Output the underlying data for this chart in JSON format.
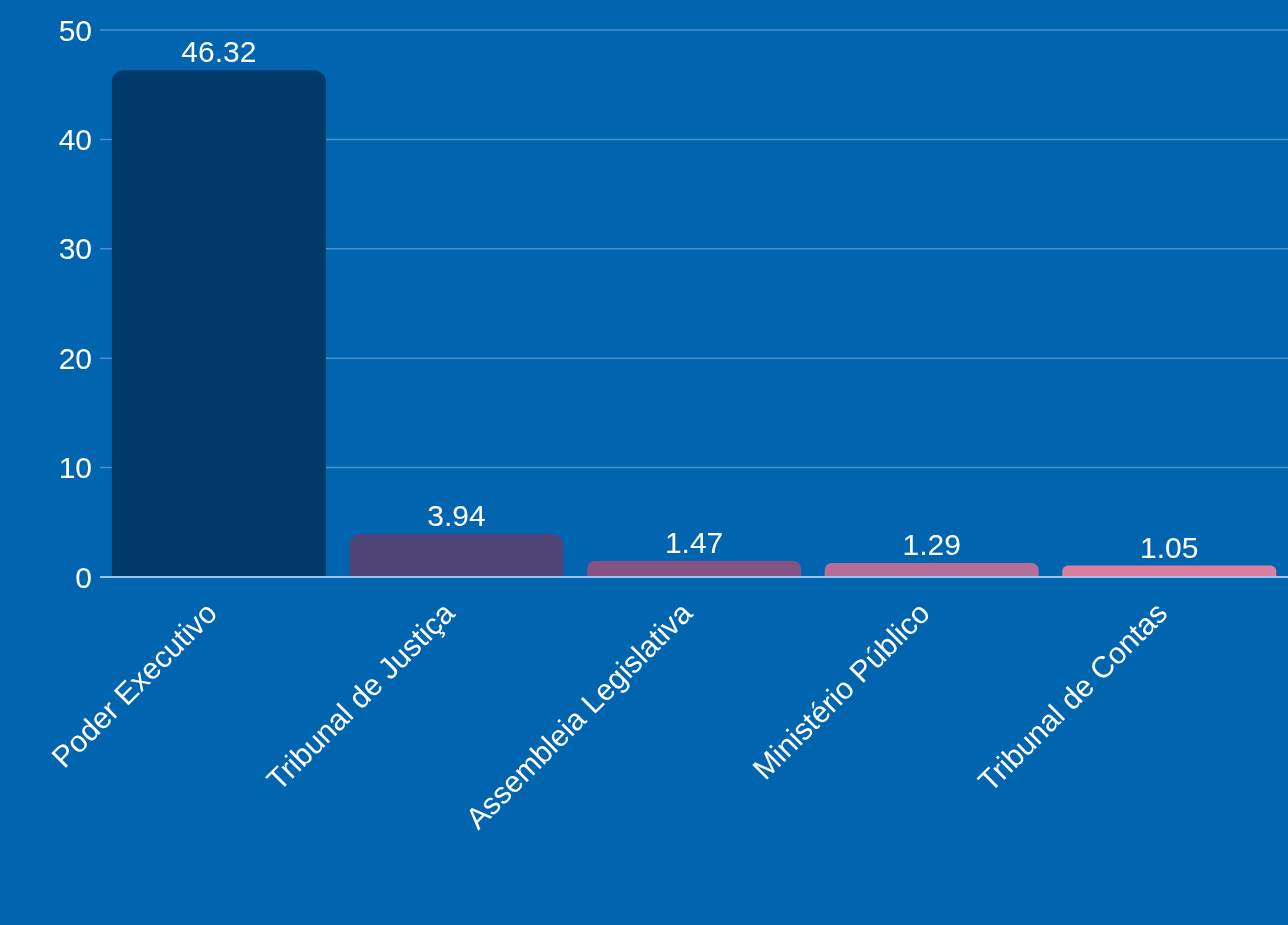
{
  "chart_data": {
    "type": "bar",
    "categories": [
      "Poder Executivo",
      "Tribunal de Justiça",
      "Assembleia Legislativa",
      "Ministério Público",
      "Tribunal de Contas"
    ],
    "values": [
      46.32,
      3.94,
      1.47,
      1.29,
      1.05
    ],
    "colors": [
      "#003a6b",
      "#4f4478",
      "#845384",
      "#b56e97",
      "#d97ea0"
    ],
    "ylim": [
      0,
      50
    ],
    "yticks": [
      0,
      10,
      20,
      30,
      40,
      50
    ],
    "grid": "y",
    "data_labels": true
  }
}
